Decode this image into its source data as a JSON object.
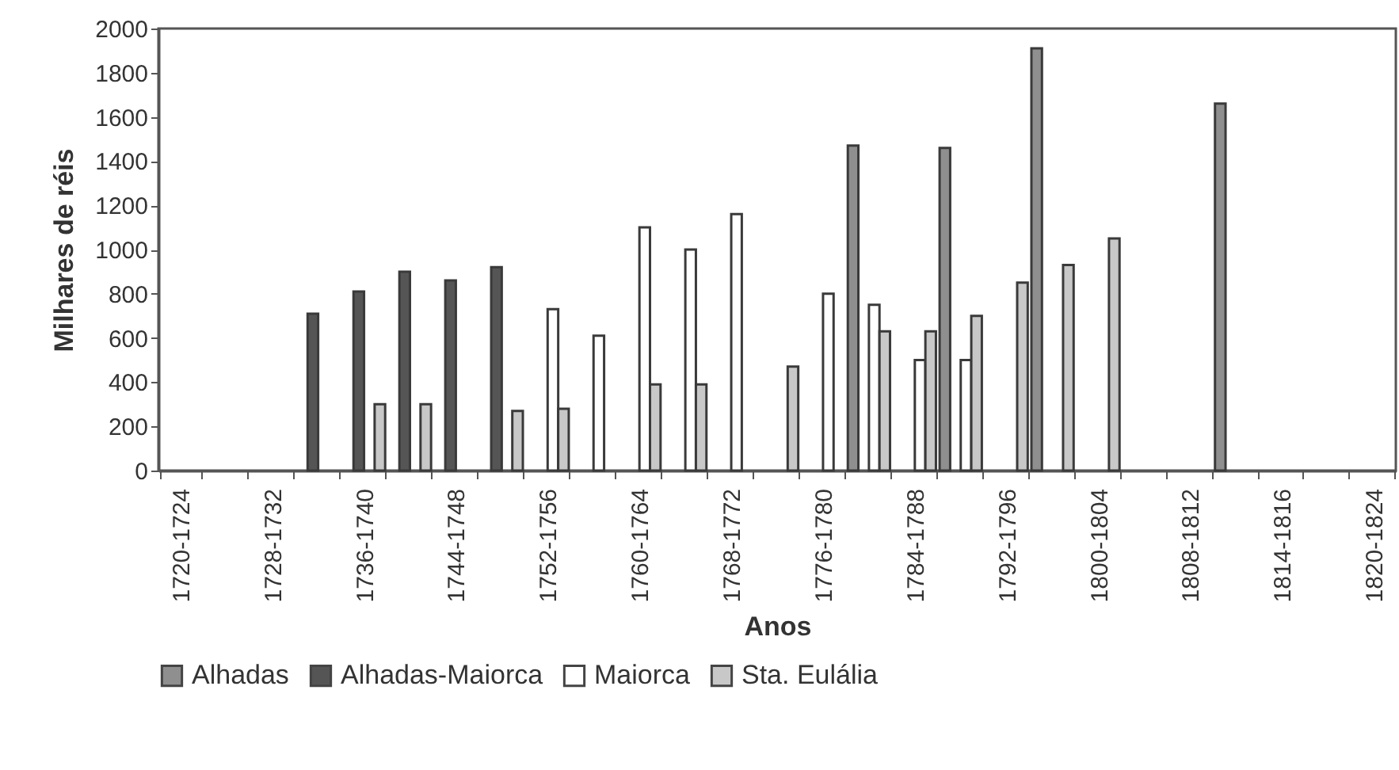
{
  "chart_data": {
    "type": "bar",
    "xlabel": "Anos",
    "ylabel": "Milhares de réis",
    "legend": "bottom",
    "categories": [
      "1720-1724",
      null,
      "1728-1732",
      null,
      "1736-1740",
      null,
      "1744-1748",
      null,
      "1752-1756",
      null,
      "1760-1764",
      null,
      "1768-1772",
      null,
      "1776-1780",
      null,
      "1784-1788",
      null,
      "1792-1796",
      null,
      "1800-1804",
      null,
      "1808-1812",
      null,
      "1814-1816",
      null,
      "1820-1824"
    ],
    "ylim": [
      0,
      2000
    ],
    "yticks": [
      0,
      200,
      400,
      600,
      800,
      1000,
      1200,
      1400,
      1600,
      1800,
      2000
    ],
    "series": [
      {
        "name": "Alhadas",
        "color": "#8f8f8f",
        "values": [
          null,
          null,
          null,
          null,
          null,
          null,
          null,
          null,
          null,
          null,
          null,
          null,
          null,
          null,
          null,
          1470,
          null,
          1460,
          null,
          1910,
          null,
          null,
          null,
          1660,
          null,
          null,
          null
        ]
      },
      {
        "name": "Alhadas-Maiorca",
        "color": "#555555",
        "values": [
          null,
          null,
          null,
          710,
          810,
          900,
          860,
          920,
          null,
          null,
          null,
          null,
          null,
          null,
          null,
          null,
          null,
          null,
          null,
          null,
          null,
          null,
          null,
          null,
          null,
          null,
          null
        ]
      },
      {
        "name": "Maiorca",
        "color": "#ffffff",
        "values": [
          null,
          null,
          null,
          null,
          null,
          null,
          null,
          null,
          730,
          610,
          1100,
          1000,
          1160,
          null,
          800,
          750,
          500,
          500,
          null,
          null,
          null,
          null,
          null,
          null,
          null,
          null,
          null
        ]
      },
      {
        "name": "Sta. Eulália",
        "color": "#c8c8c8",
        "values": [
          null,
          null,
          null,
          null,
          300,
          300,
          null,
          270,
          280,
          null,
          390,
          390,
          null,
          470,
          null,
          630,
          630,
          700,
          850,
          930,
          1050,
          null,
          null,
          null,
          null,
          null,
          null
        ]
      }
    ]
  }
}
